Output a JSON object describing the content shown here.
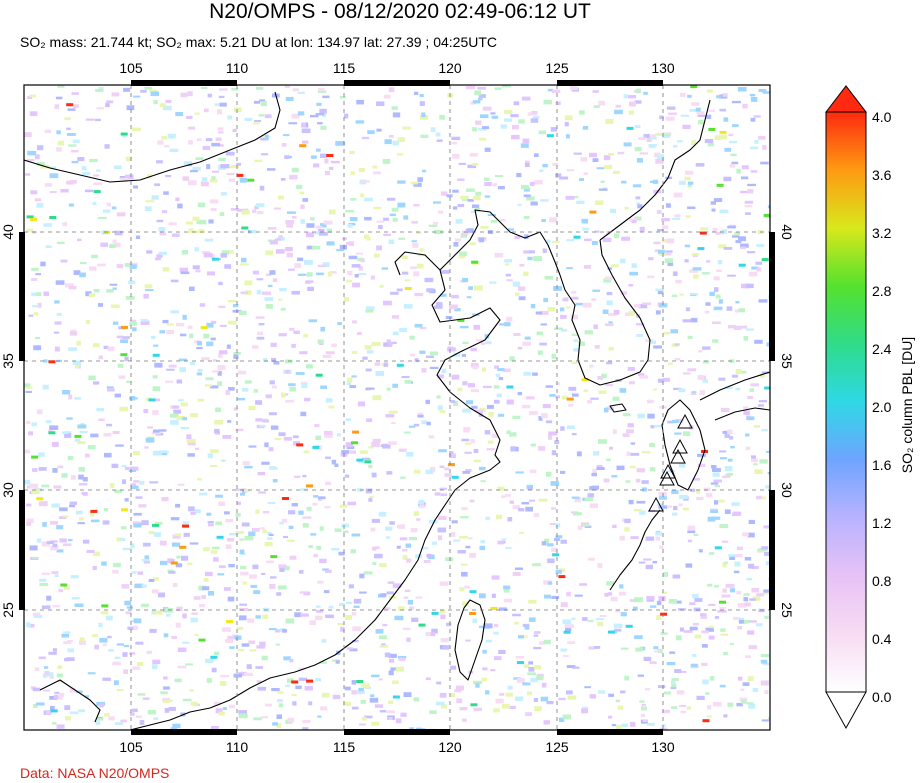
{
  "header": {
    "title": "N20/OMPS - 08/12/2020 02:49-06:12 UT",
    "subtitle": "SO₂ mass: 21.744 kt; SO₂ max: 5.21 DU at lon: 134.97 lat: 27.39 ; 04:25UTC"
  },
  "credit": "Data: NASA N20/OMPS",
  "map": {
    "lon_range": [
      100,
      135
    ],
    "lat_range": [
      20,
      45
    ],
    "lon_ticks": [
      "105",
      "110",
      "115",
      "120",
      "125",
      "130"
    ],
    "lat_ticks": [
      "40",
      "35",
      "30",
      "25"
    ],
    "volcano_icon": "triangle-icon"
  },
  "colorbar": {
    "label": "SO₂ column PBL [DU]",
    "ticks": [
      "4.0",
      "3.6",
      "3.2",
      "2.8",
      "2.4",
      "2.0",
      "1.6",
      "1.2",
      "0.8",
      "0.4",
      "0.0"
    ],
    "min": 0.0,
    "max": 4.0,
    "colors": [
      "#ffffff",
      "#f3c8ef",
      "#d7b8ff",
      "#7fa8ff",
      "#33d6e6",
      "#2fdc73",
      "#a4e62a",
      "#f3e61a",
      "#ff9a12",
      "#ff2a10"
    ]
  }
}
